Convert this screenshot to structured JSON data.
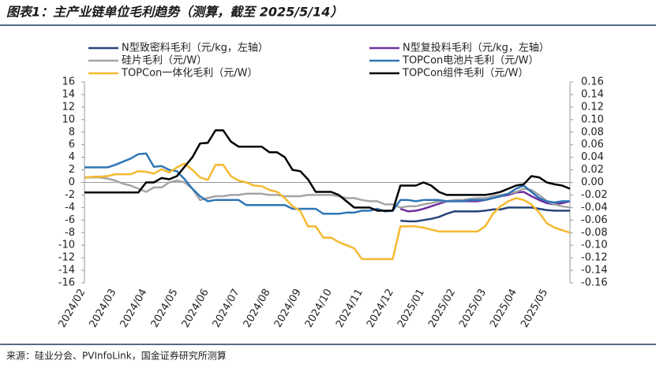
{
  "chart_data": {
    "type": "line",
    "title": "图表1：主产业链单位毛利趋势（测算，截至 2025/5/14）",
    "source": "来源：硅业分会、PVInfoLink，国金证券研究所测算",
    "categories": [
      "2024/02",
      null,
      null,
      null,
      "2024/03",
      null,
      null,
      null,
      "2024/04",
      null,
      null,
      null,
      "2024/05",
      null,
      null,
      null,
      "2024/06",
      null,
      null,
      null,
      "2024/07",
      null,
      null,
      null,
      "2024/08",
      null,
      null,
      null,
      "2024/09",
      null,
      null,
      null,
      "2024/10",
      null,
      null,
      null,
      "2024/11",
      null,
      null,
      null,
      "2024/12",
      null,
      null,
      null,
      "2025/01",
      null,
      null,
      null,
      "2025/02",
      null,
      null,
      null,
      "2025/03",
      null,
      null,
      null,
      "2025/04",
      null,
      null,
      null,
      "2025/05",
      null,
      null,
      null
    ],
    "ylim": [
      -16,
      16
    ],
    "yticks": [
      16,
      14,
      12,
      10,
      8,
      6,
      4,
      2,
      0,
      -2,
      -4,
      -6,
      -8,
      -10,
      -12,
      -14,
      -16
    ],
    "y2lim": [
      -0.16,
      0.16
    ],
    "y2ticks": [
      0.16,
      0.14,
      0.12,
      {
        "value": 0.1,
        "label": "0.10"
      },
      0.08,
      0.06,
      0.04,
      0.02,
      {
        "value": 0,
        "label": "0.00"
      },
      -0.02,
      -0.04,
      -0.06,
      -0.08,
      {
        "value": -0.1,
        "label": "-0.10"
      },
      -0.12,
      -0.14,
      -0.16
    ],
    "series": [
      {
        "name": "N型致密料毛利（元/kg，左轴）",
        "color": "#264478",
        "axis": "y",
        "values": [
          null,
          null,
          null,
          null,
          null,
          null,
          null,
          null,
          null,
          null,
          null,
          null,
          null,
          null,
          null,
          null,
          null,
          null,
          null,
          null,
          null,
          null,
          null,
          null,
          null,
          null,
          null,
          null,
          null,
          null,
          null,
          null,
          null,
          null,
          null,
          null,
          null,
          null,
          null,
          null,
          null,
          -6.1,
          -6.2,
          -6.2,
          -6.0,
          -5.8,
          -5.5,
          -5.0,
          -4.6,
          -4.6,
          -4.6,
          -4.6,
          -4.5,
          -4.3,
          -4.3,
          -4.0,
          -4.0,
          -4.0,
          -4.0,
          -4.2,
          -4.4,
          -4.5,
          -4.5,
          -4.5
        ]
      },
      {
        "name": "N型复投料毛利（元/kg，左轴）",
        "color": "#7030a0",
        "axis": "y",
        "values": [
          null,
          null,
          null,
          null,
          null,
          null,
          null,
          null,
          null,
          null,
          null,
          null,
          null,
          null,
          null,
          null,
          null,
          null,
          null,
          null,
          null,
          null,
          null,
          null,
          null,
          null,
          null,
          null,
          null,
          null,
          null,
          null,
          null,
          null,
          null,
          null,
          null,
          null,
          null,
          null,
          null,
          -4.2,
          -4.6,
          -4.5,
          -4.2,
          -3.8,
          -3.4,
          -3.0,
          -3.0,
          -3.0,
          -3.0,
          -3.0,
          -2.8,
          -2.5,
          -2.2,
          -2.0,
          -1.6,
          -1.5,
          -2.2,
          -2.8,
          -3.3,
          -3.5,
          -3.3,
          -3.0
        ]
      },
      {
        "name": "硅片毛利（元/W）",
        "color": "#a5a5a5",
        "axis": "y2",
        "values": [
          0.008,
          0.008,
          0.008,
          0.006,
          0.003,
          -0.002,
          -0.005,
          -0.01,
          -0.015,
          -0.008,
          -0.008,
          0.0,
          0.003,
          0.0,
          -0.01,
          -0.028,
          -0.025,
          -0.022,
          -0.022,
          -0.02,
          -0.02,
          -0.018,
          -0.018,
          -0.018,
          -0.02,
          -0.02,
          -0.022,
          -0.022,
          -0.022,
          -0.02,
          -0.02,
          -0.02,
          -0.02,
          -0.022,
          -0.025,
          -0.025,
          -0.028,
          -0.03,
          -0.03,
          -0.035,
          -0.035,
          -0.04,
          -0.038,
          -0.038,
          -0.035,
          -0.033,
          -0.03,
          -0.03,
          -0.028,
          -0.028,
          -0.026,
          -0.025,
          -0.025,
          -0.022,
          -0.02,
          -0.018,
          -0.015,
          -0.01,
          -0.012,
          -0.02,
          -0.03,
          -0.035,
          -0.038,
          -0.04
        ]
      },
      {
        "name": "TOPCon电池片毛利（元/W）",
        "color": "#2e75b6",
        "axis": "y2",
        "values": [
          0.024,
          0.024,
          0.024,
          0.024,
          0.028,
          0.033,
          0.038,
          0.045,
          0.046,
          0.025,
          0.026,
          0.02,
          0.018,
          0.005,
          -0.01,
          -0.022,
          -0.03,
          -0.028,
          -0.028,
          -0.028,
          -0.028,
          -0.036,
          -0.036,
          -0.036,
          -0.036,
          -0.036,
          -0.036,
          -0.042,
          -0.042,
          -0.042,
          -0.042,
          -0.05,
          -0.05,
          -0.05,
          -0.048,
          -0.048,
          -0.045,
          -0.045,
          -0.042,
          -0.046,
          -0.045,
          -0.028,
          -0.028,
          -0.03,
          -0.028,
          -0.028,
          -0.028,
          -0.03,
          -0.03,
          -0.03,
          -0.028,
          -0.028,
          -0.028,
          -0.025,
          -0.022,
          -0.018,
          -0.01,
          -0.005,
          -0.015,
          -0.025,
          -0.03,
          -0.032,
          -0.03,
          -0.03
        ]
      },
      {
        "name": "TOPCon一体化毛利（元/W）",
        "color": "#f4b930",
        "axis": "y2",
        "values": [
          0.007,
          0.009,
          0.009,
          0.01,
          0.013,
          0.013,
          0.013,
          0.018,
          0.017,
          0.014,
          0.021,
          0.016,
          0.024,
          0.03,
          0.02,
          0.008,
          0.004,
          0.028,
          0.028,
          0.01,
          0.003,
          0.0,
          -0.005,
          -0.006,
          -0.012,
          -0.015,
          -0.025,
          -0.038,
          -0.045,
          -0.07,
          -0.07,
          -0.088,
          -0.088,
          -0.095,
          -0.1,
          -0.105,
          -0.122,
          -0.122,
          -0.122,
          -0.122,
          -0.122,
          -0.07,
          -0.07,
          -0.07,
          -0.072,
          -0.075,
          -0.078,
          -0.078,
          -0.078,
          -0.078,
          -0.078,
          -0.078,
          -0.07,
          -0.05,
          -0.038,
          -0.03,
          -0.025,
          -0.028,
          -0.035,
          -0.048,
          -0.065,
          -0.072,
          -0.076,
          -0.08
        ]
      },
      {
        "name": "TOPCon组件毛利（元/W）",
        "color": "#000000",
        "axis": "y2",
        "values": [
          -0.016,
          -0.016,
          -0.016,
          -0.016,
          -0.016,
          -0.016,
          -0.016,
          -0.016,
          0,
          0,
          0.007,
          0.005,
          0.01,
          0.025,
          0.04,
          0.062,
          0.063,
          0.083,
          0.083,
          0.065,
          0.057,
          0.057,
          0.057,
          0.057,
          0.048,
          0.048,
          0.04,
          0.02,
          0.018,
          0.005,
          -0.015,
          -0.015,
          -0.015,
          -0.02,
          -0.03,
          -0.04,
          -0.04,
          -0.04,
          -0.045,
          -0.045,
          -0.045,
          -0.005,
          -0.005,
          -0.005,
          0,
          -0.005,
          -0.015,
          -0.02,
          -0.02,
          -0.02,
          -0.02,
          -0.02,
          -0.02,
          -0.018,
          -0.015,
          -0.01,
          -0.005,
          -0.003,
          0.01,
          0.008,
          0,
          -0.003,
          -0.005,
          -0.01
        ]
      }
    ]
  }
}
